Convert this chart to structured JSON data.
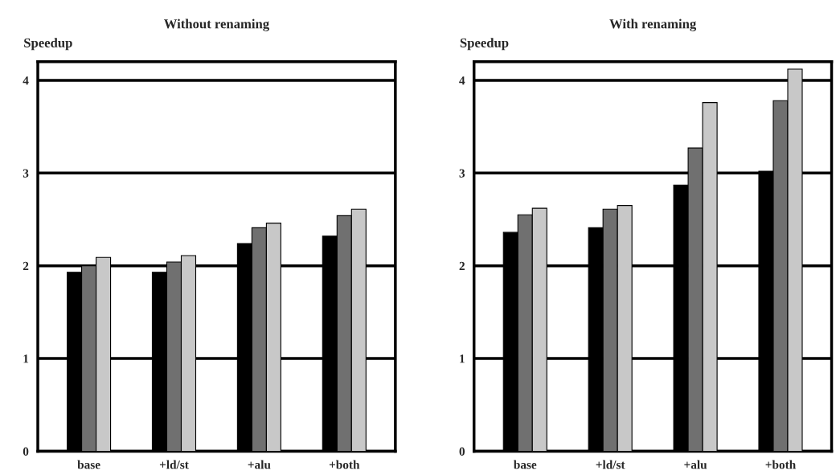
{
  "chart_data": [
    {
      "type": "bar",
      "title": "Without renaming",
      "ylabel": "Speedup",
      "categories": [
        "base",
        "+ld/st",
        "+alu",
        "+both"
      ],
      "series": [
        {
          "color": "#000000",
          "values": [
            1.93,
            1.93,
            2.24,
            2.32
          ]
        },
        {
          "color": "#707070",
          "values": [
            2.0,
            2.04,
            2.41,
            2.54
          ]
        },
        {
          "color": "#c8c8c8",
          "values": [
            2.09,
            2.11,
            2.46,
            2.61
          ]
        }
      ],
      "ylim": [
        0,
        4.2
      ],
      "yticks": [
        0,
        1,
        2,
        3,
        4
      ],
      "grid": "y"
    },
    {
      "type": "bar",
      "title": "With renaming",
      "ylabel": "Speedup",
      "categories": [
        "base",
        "+ld/st",
        "+alu",
        "+both"
      ],
      "series": [
        {
          "color": "#000000",
          "values": [
            2.36,
            2.41,
            2.87,
            3.02
          ]
        },
        {
          "color": "#707070",
          "values": [
            2.55,
            2.61,
            3.27,
            3.78
          ]
        },
        {
          "color": "#c8c8c8",
          "values": [
            2.62,
            2.65,
            3.76,
            4.12
          ]
        }
      ],
      "ylim": [
        0,
        4.2
      ],
      "yticks": [
        0,
        1,
        2,
        3,
        4
      ],
      "grid": "y"
    }
  ]
}
